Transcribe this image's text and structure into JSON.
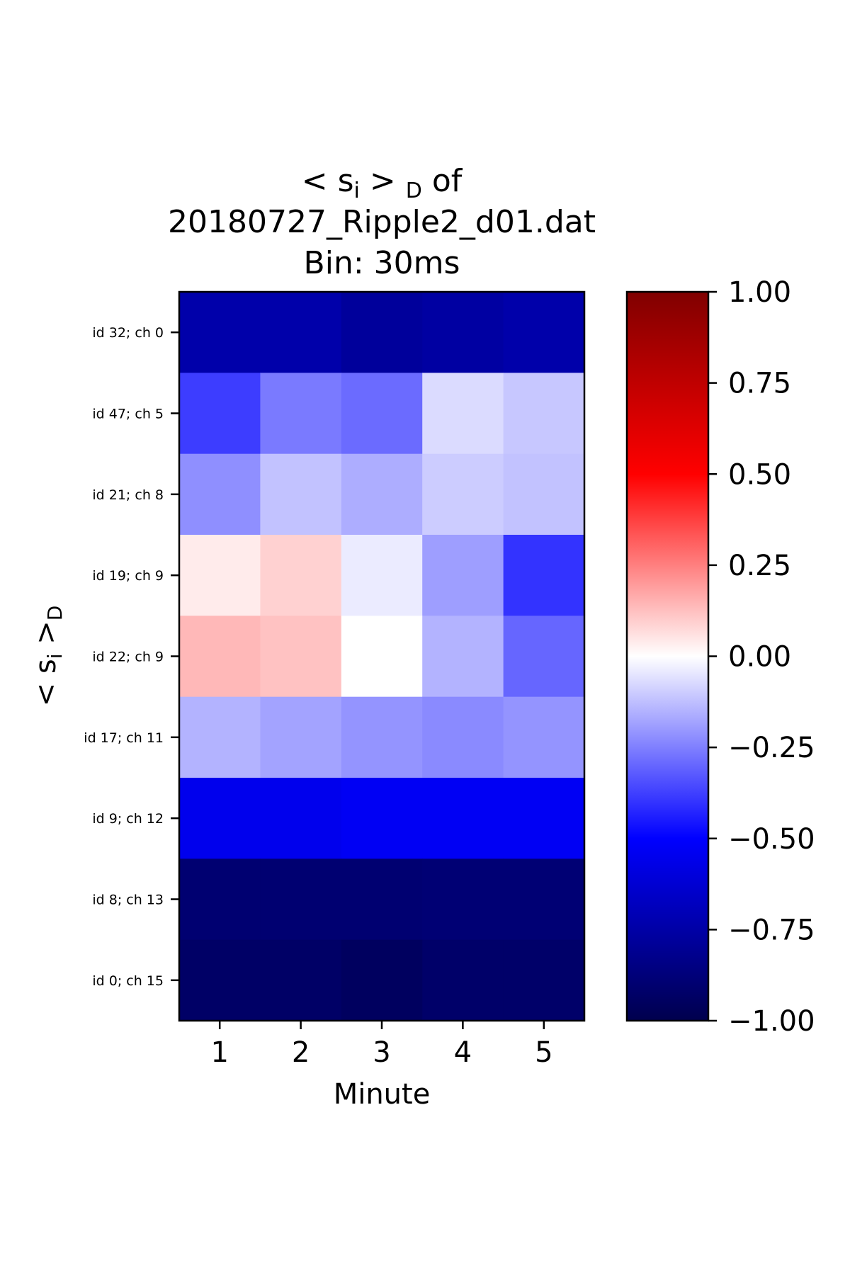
{
  "chart_data": {
    "type": "heatmap",
    "title_lines": [
      "< s",
      "i",
      " > ",
      "D",
      " of",
      "20180727_Ripple2_d01.dat",
      "Bin: 30ms"
    ],
    "title_math": {
      "pre": "< s",
      "sub_i": "i",
      "mid": " > ",
      "sub_D": "D",
      "post": " of"
    },
    "title_line2": "20180727_Ripple2_d01.dat",
    "title_line3": "Bin: 30ms",
    "xlabel": "Minute",
    "ylabel_math": {
      "pre": "< s",
      "sub_i": "i",
      "mid": " >",
      "sub_D": "D"
    },
    "x": [
      1,
      2,
      3,
      4,
      5
    ],
    "x_tick_labels": [
      "1",
      "2",
      "3",
      "4",
      "5"
    ],
    "rows": [
      "id 32; ch 0",
      "id 47; ch 5",
      "id 21; ch 8",
      "id 19; ch 9",
      "id 22; ch 9",
      "id 17; ch 11",
      "id 9; ch 12",
      "id 8; ch 13",
      "id 0; ch 15"
    ],
    "values": [
      [
        -0.74,
        -0.74,
        -0.78,
        -0.76,
        -0.74
      ],
      [
        -0.38,
        -0.26,
        -0.29,
        -0.07,
        -0.11
      ],
      [
        -0.22,
        -0.12,
        -0.16,
        -0.1,
        -0.12
      ],
      [
        0.04,
        0.09,
        -0.04,
        -0.19,
        -0.4
      ],
      [
        0.14,
        0.12,
        0.0,
        -0.15,
        -0.3
      ],
      [
        -0.15,
        -0.18,
        -0.21,
        -0.23,
        -0.21
      ],
      [
        -0.55,
        -0.55,
        -0.53,
        -0.53,
        -0.53
      ],
      [
        -0.9,
        -0.9,
        -0.9,
        -0.89,
        -0.89
      ],
      [
        -0.93,
        -0.93,
        -0.95,
        -0.92,
        -0.92
      ]
    ],
    "colormap": "seismic",
    "vmin": -1.0,
    "vmax": 1.0,
    "colorbar_ticks": [
      1.0,
      0.75,
      0.5,
      0.25,
      0.0,
      -0.25,
      -0.5,
      -0.75,
      -1.0
    ],
    "colorbar_tick_labels": [
      "1.00",
      "0.75",
      "0.50",
      "0.25",
      "0.00",
      "−0.25",
      "−0.50",
      "−0.75",
      "−1.00"
    ]
  }
}
